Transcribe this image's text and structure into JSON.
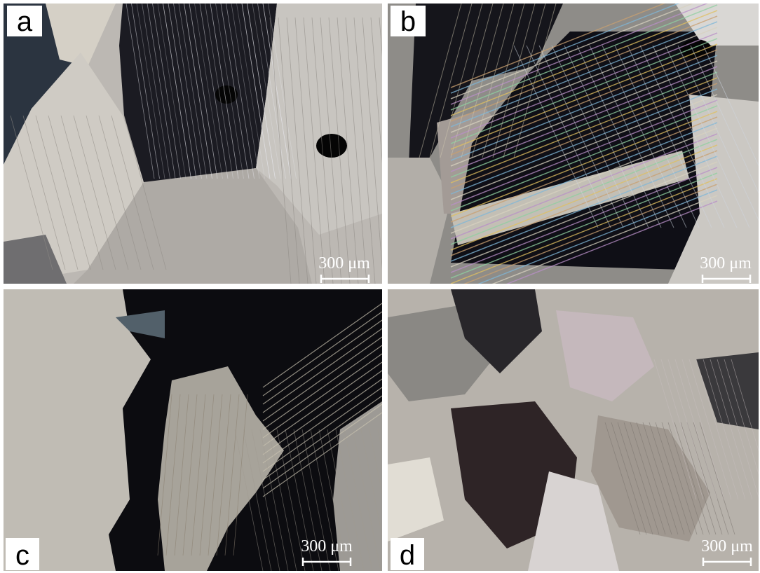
{
  "panels": [
    {
      "label": "a",
      "scale_bar": "300 μm"
    },
    {
      "label": "b",
      "scale_bar": "300 μm"
    },
    {
      "label": "c",
      "scale_bar": "300 μm"
    },
    {
      "label": "d",
      "scale_bar": "300 μm"
    }
  ]
}
